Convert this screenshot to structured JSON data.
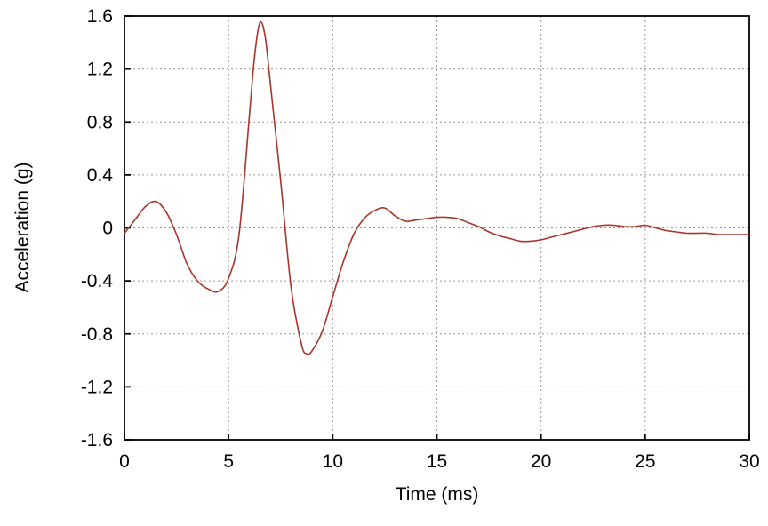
{
  "figure": {
    "x_axis_label": "Time (ms)",
    "y_axis_label": "Acceleration (g)"
  },
  "chart_data": {
    "type": "line",
    "title": "",
    "xlabel": "Time (ms)",
    "ylabel": "Acceleration (g)",
    "xlim": [
      0,
      30
    ],
    "ylim": [
      -1.6,
      1.6
    ],
    "x_ticks": [
      0,
      5,
      10,
      15,
      20,
      25,
      30
    ],
    "x_tick_labels": [
      "0",
      "5",
      "10",
      "15",
      "20",
      "25",
      "30"
    ],
    "y_ticks": [
      -1.6,
      -1.2,
      -0.8,
      -0.4,
      0,
      0.4,
      0.8,
      1.2,
      1.6
    ],
    "y_tick_labels": [
      "-1.6",
      "-1.2",
      "-0.8",
      "-0.4",
      "0",
      "0.4",
      "0.8",
      "1.2",
      "1.6"
    ],
    "grid": true,
    "grid_style": "dashed",
    "legend": false,
    "line_color": "#a8342a",
    "grid_color": "#999999",
    "axis_color": "#000000",
    "series": [
      {
        "name": "acceleration",
        "x": [
          0,
          0.5,
          1,
          1.5,
          2,
          2.5,
          3,
          3.5,
          4,
          4.5,
          5,
          5.5,
          6,
          6.25,
          6.5,
          6.75,
          7,
          7.5,
          8,
          8.5,
          8.75,
          9,
          9.5,
          10,
          10.5,
          11,
          11.5,
          12,
          12.5,
          13,
          13.5,
          14,
          14.5,
          15,
          15.5,
          16,
          16.5,
          17,
          17.5,
          18,
          18.5,
          19,
          19.5,
          20,
          20.5,
          21,
          21.5,
          22,
          22.5,
          23,
          23.5,
          24,
          24.5,
          25,
          25.5,
          26,
          26.5,
          27,
          27.5,
          28,
          28.5,
          29,
          29.5,
          30
        ],
        "y": [
          -0.04,
          0.06,
          0.16,
          0.2,
          0.12,
          -0.05,
          -0.27,
          -0.4,
          -0.46,
          -0.48,
          -0.38,
          -0.05,
          0.85,
          1.3,
          1.55,
          1.45,
          1.1,
          0.35,
          -0.45,
          -0.88,
          -0.95,
          -0.93,
          -0.78,
          -0.52,
          -0.26,
          -0.05,
          0.07,
          0.13,
          0.15,
          0.09,
          0.05,
          0.06,
          0.07,
          0.08,
          0.08,
          0.07,
          0.04,
          0.01,
          -0.03,
          -0.06,
          -0.08,
          -0.1,
          -0.1,
          -0.09,
          -0.07,
          -0.05,
          -0.03,
          -0.01,
          0.01,
          0.02,
          0.02,
          0.01,
          0.01,
          0.02,
          0.0,
          -0.02,
          -0.03,
          -0.04,
          -0.04,
          -0.04,
          -0.05,
          -0.05,
          -0.05,
          -0.05
        ]
      }
    ]
  }
}
